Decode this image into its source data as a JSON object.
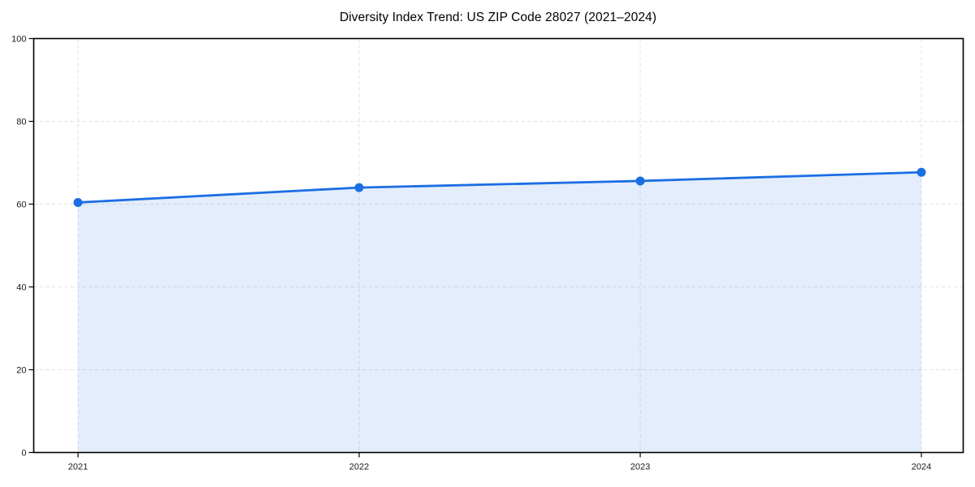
{
  "chart_data": {
    "type": "area",
    "title": "Diversity Index Trend: US ZIP Code 28027 (2021–2024)",
    "categories": [
      "2021",
      "2022",
      "2023",
      "2024"
    ],
    "values": [
      60.4,
      64.0,
      65.6,
      67.7
    ],
    "xlabel": "",
    "ylabel": "",
    "ylim": [
      0,
      100
    ],
    "yticks": [
      0,
      20,
      40,
      60,
      80,
      100
    ],
    "grid": "dashed-both-axes",
    "legend": "none",
    "colors": {
      "line": "#1b6ee3",
      "marker": "#1b6ee3",
      "fill": "#1b6ee3",
      "fill_opacity": 0.12,
      "grid": "#e3e3e3",
      "spine": "#000000",
      "tick_label": "#1a1a1a",
      "title": "#000000",
      "background": "#ffffff"
    }
  }
}
